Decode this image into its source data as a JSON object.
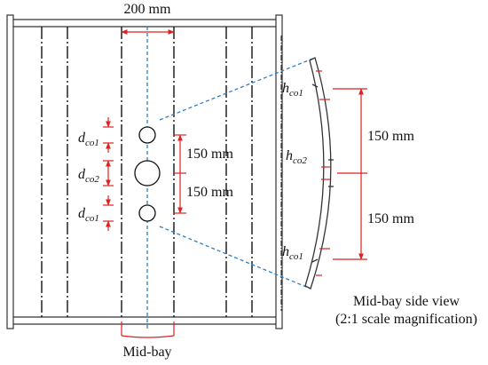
{
  "dimensions": {
    "span": "200 mm",
    "left_spacing_upper": "150 mm",
    "left_spacing_lower": "150 mm",
    "right_spacing_upper": "150 mm",
    "right_spacing_lower": "150 mm"
  },
  "hole_labels": [
    {
      "main": "d",
      "sub": "co1"
    },
    {
      "main": "d",
      "sub": "co2"
    },
    {
      "main": "d",
      "sub": "co1"
    }
  ],
  "depth_labels": [
    {
      "main": "h",
      "sub": "co1"
    },
    {
      "main": "h",
      "sub": "co2"
    },
    {
      "main": "h",
      "sub": "co1"
    }
  ],
  "side_view": {
    "title": "Mid-bay side view",
    "note": "(2:1 scale magnification)"
  },
  "midbay_label": "Mid-bay"
}
